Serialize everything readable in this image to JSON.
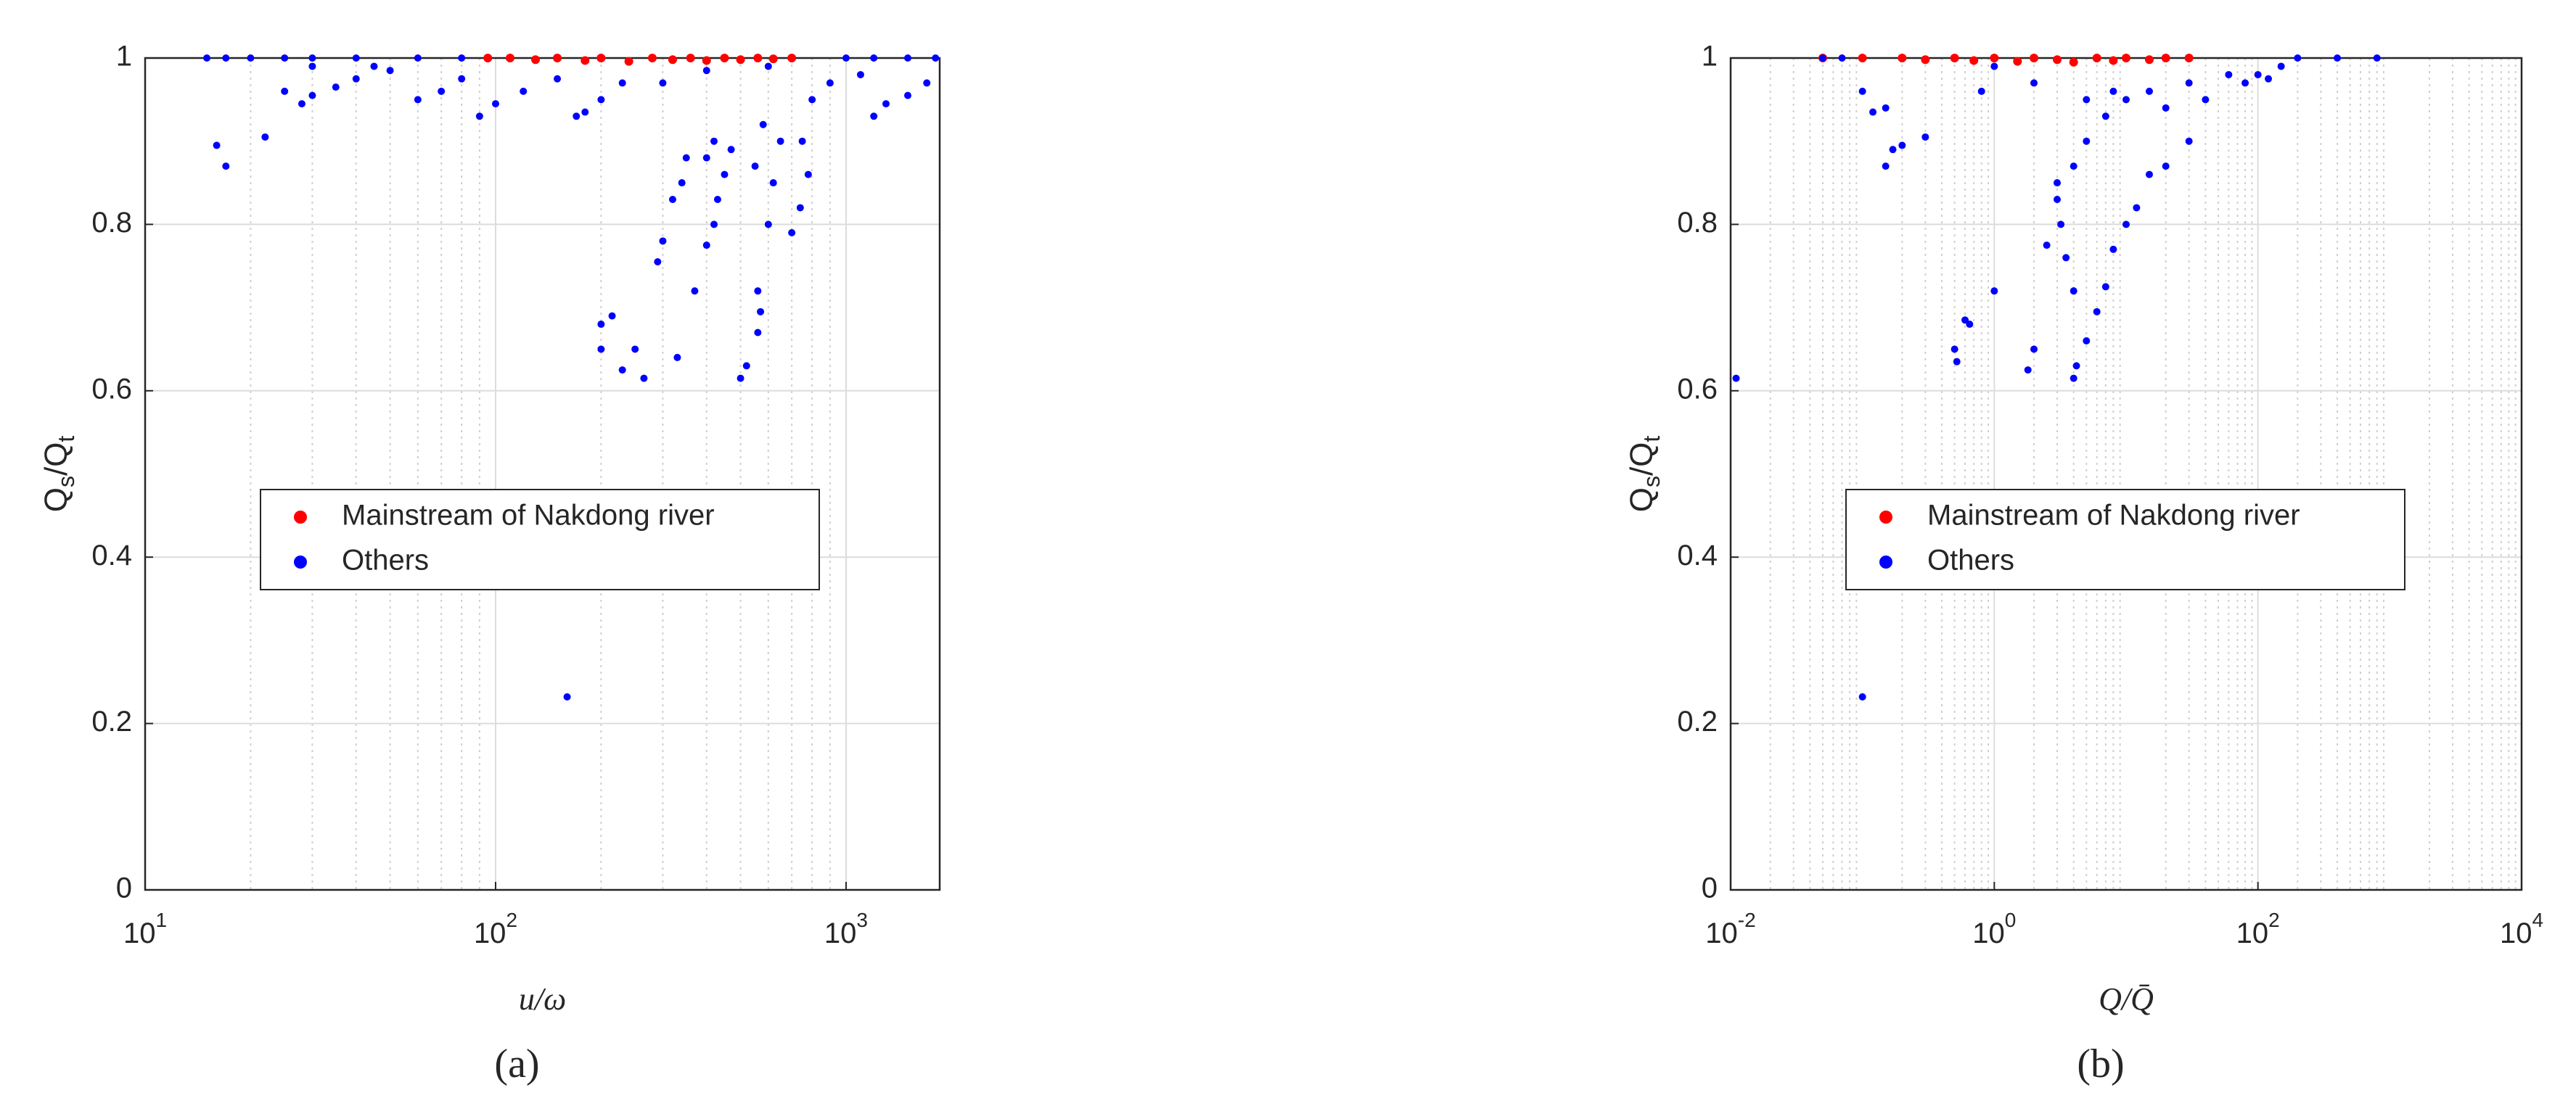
{
  "chart_data": [
    {
      "type": "scatter",
      "panel_label": "(a)",
      "x_label": "u/ω",
      "y_label_parts": [
        "Q",
        "s",
        "/Q",
        "t"
      ],
      "x_scale": "log",
      "xlim": [
        10,
        1850
      ],
      "ylim": [
        0,
        1
      ],
      "xticks": [
        {
          "value": 10,
          "label": "10",
          "exponent": "1"
        },
        {
          "value": 100,
          "label": "10",
          "exponent": "2"
        },
        {
          "value": 1000,
          "label": "10",
          "exponent": "3"
        }
      ],
      "yticks": [
        0,
        0.2,
        0.4,
        0.6,
        0.8,
        1
      ],
      "grid": true,
      "legend_position": "center",
      "series": [
        {
          "name": "Mainstream of Nakdong river",
          "color": "#ff0000",
          "x": [
            95,
            110,
            130,
            150,
            180,
            200,
            240,
            280,
            320,
            360,
            400,
            450,
            500,
            560,
            620,
            700
          ],
          "y": [
            1,
            1,
            0.998,
            1,
            0.997,
            1,
            0.996,
            1,
            0.998,
            1,
            0.997,
            1,
            0.998,
            1,
            0.999,
            1
          ]
        },
        {
          "name": "Others",
          "color": "#0000ff",
          "x": [
            15,
            17,
            20,
            25,
            30,
            40,
            60,
            80,
            1000,
            1200,
            1500,
            1800,
            16,
            17,
            22,
            25,
            28,
            30,
            35,
            40,
            50,
            30,
            45,
            60,
            70,
            80,
            90,
            100,
            120,
            150,
            170,
            180,
            200,
            230,
            200,
            200,
            215,
            230,
            250,
            265,
            290,
            300,
            320,
            340,
            350,
            330,
            370,
            400,
            420,
            430,
            450,
            470,
            400,
            420,
            500,
            520,
            560,
            570,
            560,
            600,
            620,
            650,
            550,
            580,
            700,
            740,
            780,
            750,
            800,
            900,
            1200,
            1300,
            1500,
            1700,
            1100,
            160,
            300,
            400,
            600
          ],
          "y": [
            1,
            1,
            1,
            1,
            1,
            1,
            1,
            1,
            1,
            1,
            1,
            1,
            0.895,
            0.87,
            0.905,
            0.96,
            0.945,
            0.955,
            0.965,
            0.975,
            0.985,
            0.99,
            0.99,
            0.95,
            0.96,
            0.975,
            0.93,
            0.945,
            0.96,
            0.975,
            0.93,
            0.935,
            0.95,
            0.97,
            0.65,
            0.68,
            0.69,
            0.625,
            0.65,
            0.615,
            0.755,
            0.78,
            0.83,
            0.85,
            0.88,
            0.64,
            0.72,
            0.775,
            0.8,
            0.83,
            0.86,
            0.89,
            0.88,
            0.9,
            0.615,
            0.63,
            0.67,
            0.695,
            0.72,
            0.8,
            0.85,
            0.9,
            0.87,
            0.92,
            0.79,
            0.82,
            0.86,
            0.9,
            0.95,
            0.97,
            0.93,
            0.945,
            0.955,
            0.97,
            0.98,
            0.232,
            0.97,
            0.985,
            0.99
          ]
        }
      ]
    },
    {
      "type": "scatter",
      "panel_label": "(b)",
      "x_label": "Q/Q̄",
      "y_label_parts": [
        "Q",
        "s",
        "/Q",
        "t"
      ],
      "x_scale": "log",
      "xlim": [
        0.01,
        10000
      ],
      "ylim": [
        0,
        1
      ],
      "xticks": [
        {
          "value": 0.01,
          "label": "10",
          "exponent": "-2"
        },
        {
          "value": 1,
          "label": "10",
          "exponent": "0"
        },
        {
          "value": 100,
          "label": "10",
          "exponent": "2"
        },
        {
          "value": 10000,
          "label": "10",
          "exponent": "4"
        }
      ],
      "yticks": [
        0,
        0.2,
        0.4,
        0.6,
        0.8,
        1
      ],
      "grid": true,
      "legend_position": "center",
      "series": [
        {
          "name": "Mainstream of Nakdong river",
          "color": "#ff0000",
          "x": [
            0.05,
            0.1,
            0.2,
            0.3,
            0.5,
            0.7,
            1,
            1.5,
            2,
            3,
            4,
            6,
            8,
            10,
            15,
            20,
            30
          ],
          "y": [
            1,
            1,
            1,
            0.998,
            1,
            0.997,
            1,
            0.996,
            1,
            0.998,
            0.995,
            1,
            0.997,
            1,
            0.998,
            1,
            1
          ]
        },
        {
          "name": "Others",
          "color": "#0000ff",
          "x": [
            0.011,
            0.1,
            0.05,
            0.07,
            0.1,
            0.12,
            0.15,
            0.17,
            0.2,
            0.15,
            0.3,
            0.5,
            0.52,
            0.6,
            0.65,
            1,
            1.8,
            2,
            2.5,
            3,
            3.2,
            3.5,
            4,
            4.2,
            4,
            5,
            6,
            7,
            8,
            10,
            12,
            15,
            20,
            30,
            3,
            4,
            5,
            7,
            10,
            15,
            30,
            60,
            100,
            5,
            8,
            20,
            40,
            80,
            150,
            200,
            400,
            800,
            120,
            2,
            1,
            0.8
          ],
          "y": [
            0.615,
            0.232,
            1,
            1,
            0.96,
            0.935,
            0.87,
            0.89,
            0.895,
            0.94,
            0.905,
            0.65,
            0.635,
            0.685,
            0.68,
            0.72,
            0.625,
            0.65,
            0.775,
            0.83,
            0.8,
            0.76,
            0.615,
            0.63,
            0.72,
            0.66,
            0.695,
            0.725,
            0.77,
            0.8,
            0.82,
            0.86,
            0.87,
            0.9,
            0.85,
            0.87,
            0.9,
            0.93,
            0.95,
            0.96,
            0.97,
            0.98,
            0.98,
            0.95,
            0.96,
            0.94,
            0.95,
            0.97,
            0.99,
            1,
            1,
            1,
            0.975,
            0.97,
            0.99,
            0.96
          ]
        }
      ]
    }
  ]
}
